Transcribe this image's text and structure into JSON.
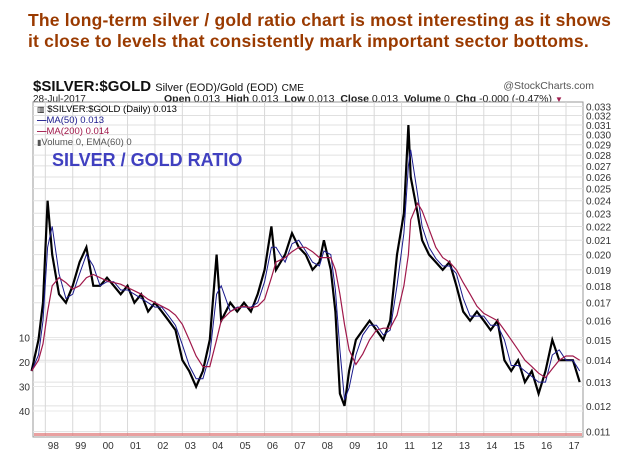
{
  "headline": {
    "line1": "The long-term silver / gold ratio chart is most interesting as it shows",
    "line2": "it close to levels that consistently mark important sector bottoms."
  },
  "header": {
    "symbol": "$SILVER:$GOLD",
    "description": "Silver (EOD)/Gold (EOD)",
    "exchange": "CME",
    "copyright": "@StockCharts.com",
    "date": "28-Jul-2017",
    "open_label": "Open",
    "open": "0.013",
    "high_label": "High",
    "high": "0.013",
    "low_label": "Low",
    "low": "0.013",
    "close_label": "Close",
    "close": "0.013",
    "volume_label": "Volume",
    "volume": "0",
    "chg_label": "Chg",
    "chg": "-0.000 (-0.47%)"
  },
  "legend": {
    "price": "$SILVER:$GOLD (Daily) 0.013",
    "ma50": "MA(50) 0.013",
    "ma200": "MA(200) 0.014",
    "volume": "Volume 0, EMA(60) 0"
  },
  "annotation": "SILVER / GOLD RATIO",
  "colors": {
    "headline": "#9a3a00",
    "price": "#000000",
    "ma50": "#1a1a8c",
    "ma200": "#a0184a",
    "annotation": "#4040c0",
    "volume": "#e07878"
  },
  "chart_data": {
    "type": "line",
    "y_scale": "log",
    "ylim": [
      0.0108,
      0.0335
    ],
    "y_ticks": [
      "0.033",
      "0.032",
      "0.031",
      "0.030",
      "0.029",
      "0.028",
      "0.027",
      "0.026",
      "0.025",
      "0.024",
      "0.023",
      "0.022",
      "0.021",
      "0.020",
      "0.019",
      "0.018",
      "0.017",
      "0.016",
      "0.015",
      "0.014",
      "0.013",
      "0.012",
      "0.011"
    ],
    "volume_ticks": [
      "40",
      "30",
      "20",
      "10"
    ],
    "x_ticks": [
      "98",
      "99",
      "00",
      "01",
      "02",
      "03",
      "04",
      "05",
      "06",
      "07",
      "08",
      "09",
      "10",
      "11",
      "12",
      "13",
      "14",
      "15",
      "16",
      "17"
    ],
    "grid": true,
    "x": [
      "1997-07",
      "1997-10",
      "1997-12",
      "1998-02",
      "1998-04",
      "1998-07",
      "1998-10",
      "1999-01",
      "1999-04",
      "1999-07",
      "1999-10",
      "2000-01",
      "2000-04",
      "2000-07",
      "2000-10",
      "2001-01",
      "2001-04",
      "2001-07",
      "2001-10",
      "2002-01",
      "2002-04",
      "2002-07",
      "2002-10",
      "2003-01",
      "2003-04",
      "2003-07",
      "2003-10",
      "2004-01",
      "2004-04",
      "2004-06",
      "2004-10",
      "2005-01",
      "2005-04",
      "2005-07",
      "2005-10",
      "2006-01",
      "2006-04",
      "2006-06",
      "2006-10",
      "2007-01",
      "2007-04",
      "2007-07",
      "2007-10",
      "2008-01",
      "2008-03",
      "2008-06",
      "2008-08",
      "2008-10",
      "2008-12",
      "2009-02",
      "2009-05",
      "2009-08",
      "2009-11",
      "2010-02",
      "2010-05",
      "2010-08",
      "2010-11",
      "2011-02",
      "2011-04",
      "2011-05",
      "2011-08",
      "2011-10",
      "2012-01",
      "2012-04",
      "2012-07",
      "2012-10",
      "2013-01",
      "2013-04",
      "2013-07",
      "2013-10",
      "2014-01",
      "2014-04",
      "2014-07",
      "2014-10",
      "2015-01",
      "2015-04",
      "2015-07",
      "2015-10",
      "2016-01",
      "2016-04",
      "2016-07",
      "2016-10",
      "2017-01",
      "2017-04",
      "2017-07"
    ],
    "series": [
      {
        "name": "$SILVER:$GOLD",
        "values": [
          0.0135,
          0.015,
          0.017,
          0.024,
          0.02,
          0.0175,
          0.017,
          0.018,
          0.0195,
          0.0205,
          0.018,
          0.018,
          0.0185,
          0.018,
          0.0175,
          0.018,
          0.017,
          0.0175,
          0.0165,
          0.017,
          0.0165,
          0.016,
          0.0155,
          0.014,
          0.0135,
          0.0128,
          0.0135,
          0.015,
          0.02,
          0.016,
          0.017,
          0.0165,
          0.017,
          0.0165,
          0.0175,
          0.019,
          0.022,
          0.019,
          0.02,
          0.0215,
          0.0205,
          0.02,
          0.019,
          0.0195,
          0.021,
          0.019,
          0.0165,
          0.0125,
          0.012,
          0.0135,
          0.015,
          0.0155,
          0.016,
          0.0155,
          0.015,
          0.016,
          0.02,
          0.023,
          0.031,
          0.026,
          0.023,
          0.021,
          0.02,
          0.0195,
          0.019,
          0.0195,
          0.018,
          0.0165,
          0.016,
          0.0165,
          0.016,
          0.0155,
          0.016,
          0.014,
          0.0135,
          0.014,
          0.013,
          0.0135,
          0.0125,
          0.0135,
          0.015,
          0.014,
          0.014,
          0.014,
          0.013
        ]
      },
      {
        "name": "MA(200)",
        "values": [
          0.0135,
          0.014,
          0.0148,
          0.0165,
          0.018,
          0.0185,
          0.0182,
          0.0178,
          0.018,
          0.0185,
          0.0187,
          0.0185,
          0.0183,
          0.0182,
          0.0181,
          0.0179,
          0.0177,
          0.0175,
          0.0172,
          0.017,
          0.0168,
          0.0166,
          0.0163,
          0.0158,
          0.015,
          0.0142,
          0.0137,
          0.0137,
          0.015,
          0.016,
          0.0165,
          0.0167,
          0.0168,
          0.0167,
          0.0168,
          0.0172,
          0.0185,
          0.0195,
          0.0198,
          0.0202,
          0.0205,
          0.0205,
          0.0202,
          0.0198,
          0.0198,
          0.0198,
          0.019,
          0.0175,
          0.0158,
          0.0145,
          0.0138,
          0.0143,
          0.015,
          0.0155,
          0.0156,
          0.0156,
          0.0163,
          0.018,
          0.02,
          0.0225,
          0.0238,
          0.0232,
          0.0218,
          0.0205,
          0.0198,
          0.0195,
          0.019,
          0.0182,
          0.0175,
          0.0168,
          0.0164,
          0.0162,
          0.016,
          0.0155,
          0.015,
          0.0145,
          0.014,
          0.0137,
          0.0134,
          0.0132,
          0.0136,
          0.014,
          0.0142,
          0.0142,
          0.014
        ]
      }
    ]
  }
}
